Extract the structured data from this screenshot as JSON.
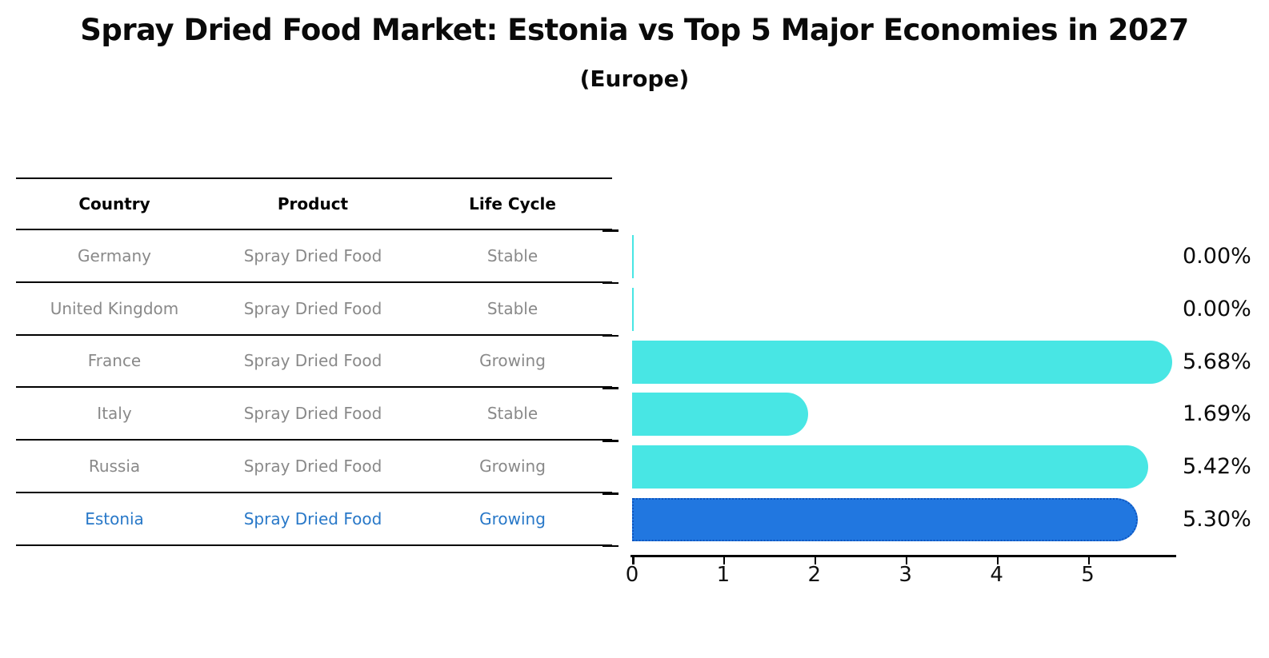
{
  "title": "Spray Dried Food Market: Estonia vs Top 5 Major Economies in 2027",
  "subtitle": "(Europe)",
  "table": {
    "headers": [
      "Country",
      "Product",
      "Life Cycle"
    ],
    "rows": [
      {
        "country": "Germany",
        "product": "Spray Dried Food",
        "life_cycle": "Stable",
        "highlight": false
      },
      {
        "country": "United Kingdom",
        "product": "Spray Dried Food",
        "life_cycle": "Stable",
        "highlight": false
      },
      {
        "country": "France",
        "product": "Spray Dried Food",
        "life_cycle": "Growing",
        "highlight": false
      },
      {
        "country": "Italy",
        "product": "Spray Dried Food",
        "life_cycle": "Stable",
        "highlight": false
      },
      {
        "country": "Russia",
        "product": "Spray Dried Food",
        "life_cycle": "Growing",
        "highlight": false
      },
      {
        "country": "Estonia",
        "product": "Spray Dried Food",
        "life_cycle": "Growing",
        "highlight": true
      }
    ]
  },
  "chart_data": {
    "type": "bar",
    "orientation": "horizontal",
    "categories": [
      "Germany",
      "United Kingdom",
      "France",
      "Italy",
      "Russia",
      "Estonia"
    ],
    "values": [
      0.0,
      0.0,
      5.68,
      1.69,
      5.42,
      5.3
    ],
    "value_labels": [
      "0.00%",
      "0.00%",
      "5.68%",
      "1.69%",
      "5.42%",
      "5.30%"
    ],
    "xticks": [
      "0",
      "1",
      "2",
      "3",
      "4",
      "5"
    ],
    "xlim": [
      0,
      5.96
    ],
    "grid": false,
    "legend": "none",
    "bar_color": "#48e6e4",
    "highlight_index": 5,
    "highlight_bar_color": "#2177e0",
    "highlight_border_color": "#0d54be",
    "highlight_text_color": "#2878c8",
    "axis_color": "#000000"
  }
}
